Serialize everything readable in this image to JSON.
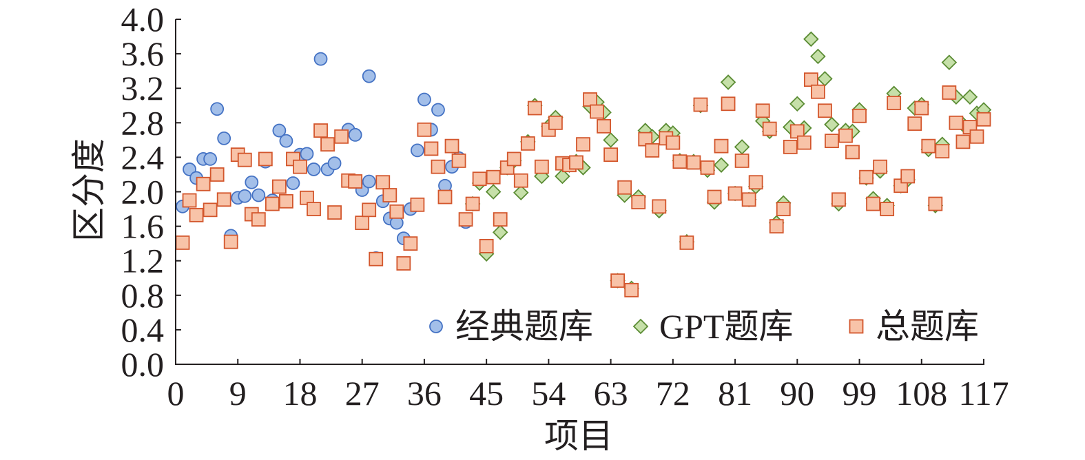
{
  "chart_data": {
    "type": "scatter",
    "xlabel": "项目",
    "ylabel": "区分度",
    "xlim": [
      0,
      117
    ],
    "ylim": [
      0,
      4.0
    ],
    "x_tick_labels": [
      "0",
      "9",
      "18",
      "27",
      "36",
      "45",
      "54",
      "63",
      "72",
      "81",
      "90",
      "99",
      "108",
      "117"
    ],
    "y_tick_labels": [
      "0.0",
      "0.4",
      "0.8",
      "1.2",
      "1.6",
      "2.0",
      "2.4",
      "2.8",
      "3.2",
      "3.6",
      "4.0"
    ],
    "grid": false,
    "legend_position": "bottom-right",
    "series": [
      {
        "name": "经典题库",
        "marker": "circle",
        "fill": "#a3bfe9",
        "stroke": "#4472c4",
        "points": [
          [
            1,
            1.83
          ],
          [
            2,
            2.26
          ],
          [
            3,
            2.16
          ],
          [
            4,
            2.38
          ],
          [
            5,
            2.38
          ],
          [
            6,
            2.96
          ],
          [
            7,
            2.62
          ],
          [
            8,
            1.49
          ],
          [
            9,
            1.93
          ],
          [
            10,
            1.95
          ],
          [
            11,
            2.11
          ],
          [
            12,
            1.96
          ],
          [
            13,
            2.35
          ],
          [
            14,
            1.9
          ],
          [
            15,
            2.71
          ],
          [
            16,
            2.59
          ],
          [
            17,
            2.1
          ],
          [
            18,
            2.43
          ],
          [
            19,
            2.44
          ],
          [
            20,
            2.26
          ],
          [
            21,
            3.54
          ],
          [
            22,
            2.26
          ],
          [
            23,
            2.33
          ],
          [
            25,
            2.72
          ],
          [
            26,
            2.66
          ],
          [
            27,
            2.02
          ],
          [
            28,
            2.12
          ],
          [
            28,
            3.34
          ],
          [
            29,
            1.23
          ],
          [
            30,
            1.89
          ],
          [
            31,
            1.69
          ],
          [
            32,
            1.64
          ],
          [
            33,
            1.46
          ],
          [
            34,
            1.8
          ],
          [
            35,
            2.48
          ],
          [
            36,
            3.07
          ],
          [
            37,
            2.72
          ],
          [
            38,
            2.95
          ],
          [
            39,
            2.07
          ],
          [
            40,
            2.29
          ],
          [
            41,
            2.39
          ],
          [
            42,
            1.65
          ]
        ]
      },
      {
        "name": "GPT题库",
        "marker": "diamond",
        "fill": "#c6e0a9",
        "stroke": "#5b8c34",
        "points": [
          [
            43,
            1.86
          ],
          [
            44,
            2.1
          ],
          [
            45,
            1.28
          ],
          [
            46,
            2.0
          ],
          [
            47,
            1.53
          ],
          [
            48,
            2.28
          ],
          [
            49,
            2.36
          ],
          [
            50,
            1.99
          ],
          [
            51,
            2.58
          ],
          [
            52,
            3.0
          ],
          [
            53,
            2.18
          ],
          [
            54,
            2.76
          ],
          [
            55,
            2.86
          ],
          [
            56,
            2.18
          ],
          [
            57,
            2.31
          ],
          [
            58,
            2.35
          ],
          [
            59,
            2.28
          ],
          [
            60,
            2.99
          ],
          [
            61,
            3.04
          ],
          [
            62,
            2.92
          ],
          [
            63,
            2.6
          ],
          [
            64,
            0.97
          ],
          [
            65,
            1.96
          ],
          [
            66,
            0.88
          ],
          [
            67,
            1.94
          ],
          [
            68,
            2.71
          ],
          [
            69,
            2.64
          ],
          [
            70,
            1.78
          ],
          [
            71,
            2.71
          ],
          [
            72,
            2.68
          ],
          [
            73,
            2.36
          ],
          [
            74,
            1.42
          ],
          [
            75,
            2.35
          ],
          [
            76,
            3.0
          ],
          [
            77,
            2.25
          ],
          [
            78,
            1.88
          ],
          [
            79,
            2.31
          ],
          [
            80,
            3.27
          ],
          [
            81,
            1.98
          ],
          [
            82,
            2.52
          ],
          [
            83,
            1.91
          ],
          [
            84,
            2.06
          ],
          [
            85,
            2.82
          ],
          [
            86,
            2.7
          ],
          [
            87,
            1.64
          ],
          [
            88,
            1.87
          ],
          [
            89,
            2.75
          ],
          [
            90,
            3.02
          ],
          [
            91,
            2.74
          ],
          [
            92,
            3.77
          ],
          [
            93,
            3.57
          ],
          [
            94,
            3.31
          ],
          [
            95,
            2.78
          ],
          [
            96,
            1.86
          ],
          [
            97,
            2.71
          ],
          [
            98,
            2.7
          ],
          [
            99,
            2.95
          ],
          [
            100,
            2.16
          ],
          [
            101,
            1.92
          ],
          [
            102,
            2.24
          ],
          [
            103,
            1.84
          ],
          [
            104,
            3.14
          ],
          [
            105,
            2.07
          ],
          [
            106,
            2.14
          ],
          [
            107,
            2.97
          ],
          [
            108,
            3.01
          ],
          [
            109,
            2.49
          ],
          [
            110,
            1.84
          ],
          [
            111,
            2.55
          ],
          [
            112,
            3.5
          ],
          [
            113,
            3.1
          ],
          [
            114,
            2.78
          ],
          [
            115,
            3.1
          ],
          [
            116,
            2.91
          ],
          [
            117,
            2.95
          ]
        ]
      },
      {
        "name": "总题库",
        "marker": "square",
        "fill": "#f8c3a8",
        "stroke": "#d3562c",
        "points": [
          [
            1,
            1.41
          ],
          [
            2,
            1.9
          ],
          [
            3,
            1.73
          ],
          [
            4,
            2.09
          ],
          [
            5,
            1.79
          ],
          [
            6,
            2.2
          ],
          [
            7,
            1.91
          ],
          [
            8,
            1.42
          ],
          [
            9,
            2.43
          ],
          [
            10,
            2.37
          ],
          [
            11,
            1.74
          ],
          [
            12,
            1.68
          ],
          [
            13,
            2.38
          ],
          [
            14,
            1.86
          ],
          [
            15,
            2.06
          ],
          [
            16,
            1.89
          ],
          [
            17,
            2.38
          ],
          [
            18,
            2.29
          ],
          [
            19,
            1.93
          ],
          [
            20,
            1.8
          ],
          [
            21,
            2.71
          ],
          [
            22,
            2.55
          ],
          [
            23,
            1.76
          ],
          [
            24,
            2.64
          ],
          [
            25,
            2.13
          ],
          [
            26,
            2.12
          ],
          [
            27,
            1.64
          ],
          [
            28,
            1.79
          ],
          [
            29,
            1.22
          ],
          [
            30,
            2.11
          ],
          [
            31,
            1.96
          ],
          [
            32,
            1.77
          ],
          [
            33,
            1.17
          ],
          [
            34,
            1.4
          ],
          [
            35,
            1.85
          ],
          [
            36,
            2.72
          ],
          [
            37,
            2.5
          ],
          [
            38,
            2.29
          ],
          [
            39,
            1.94
          ],
          [
            40,
            2.53
          ],
          [
            41,
            2.36
          ],
          [
            42,
            1.68
          ],
          [
            43,
            1.86
          ],
          [
            44,
            2.15
          ],
          [
            45,
            1.37
          ],
          [
            46,
            2.17
          ],
          [
            47,
            1.68
          ],
          [
            48,
            2.28
          ],
          [
            49,
            2.38
          ],
          [
            50,
            2.13
          ],
          [
            51,
            2.56
          ],
          [
            52,
            2.97
          ],
          [
            53,
            2.29
          ],
          [
            54,
            2.72
          ],
          [
            55,
            2.8
          ],
          [
            56,
            2.33
          ],
          [
            57,
            2.31
          ],
          [
            58,
            2.34
          ],
          [
            59,
            2.55
          ],
          [
            60,
            3.07
          ],
          [
            61,
            2.93
          ],
          [
            62,
            2.76
          ],
          [
            63,
            2.43
          ],
          [
            64,
            0.97
          ],
          [
            65,
            2.05
          ],
          [
            66,
            0.86
          ],
          [
            67,
            1.88
          ],
          [
            68,
            2.61
          ],
          [
            69,
            2.48
          ],
          [
            70,
            1.83
          ],
          [
            71,
            2.62
          ],
          [
            72,
            2.57
          ],
          [
            73,
            2.35
          ],
          [
            74,
            1.41
          ],
          [
            75,
            2.34
          ],
          [
            76,
            3.01
          ],
          [
            77,
            2.28
          ],
          [
            78,
            1.94
          ],
          [
            79,
            2.53
          ],
          [
            80,
            3.02
          ],
          [
            81,
            1.98
          ],
          [
            82,
            2.36
          ],
          [
            83,
            1.91
          ],
          [
            84,
            2.11
          ],
          [
            85,
            2.94
          ],
          [
            86,
            2.73
          ],
          [
            87,
            1.6
          ],
          [
            88,
            1.8
          ],
          [
            89,
            2.52
          ],
          [
            90,
            2.7
          ],
          [
            91,
            2.57
          ],
          [
            92,
            3.3
          ],
          [
            93,
            3.16
          ],
          [
            94,
            2.94
          ],
          [
            95,
            2.59
          ],
          [
            96,
            1.91
          ],
          [
            97,
            2.65
          ],
          [
            98,
            2.46
          ],
          [
            99,
            2.88
          ],
          [
            100,
            2.17
          ],
          [
            101,
            1.86
          ],
          [
            102,
            2.29
          ],
          [
            103,
            1.8
          ],
          [
            104,
            3.03
          ],
          [
            105,
            2.07
          ],
          [
            106,
            2.18
          ],
          [
            107,
            2.79
          ],
          [
            108,
            2.97
          ],
          [
            109,
            2.53
          ],
          [
            110,
            1.86
          ],
          [
            111,
            2.47
          ],
          [
            112,
            3.15
          ],
          [
            113,
            2.8
          ],
          [
            114,
            2.58
          ],
          [
            115,
            2.75
          ],
          [
            116,
            2.64
          ],
          [
            117,
            2.84
          ]
        ]
      }
    ]
  }
}
